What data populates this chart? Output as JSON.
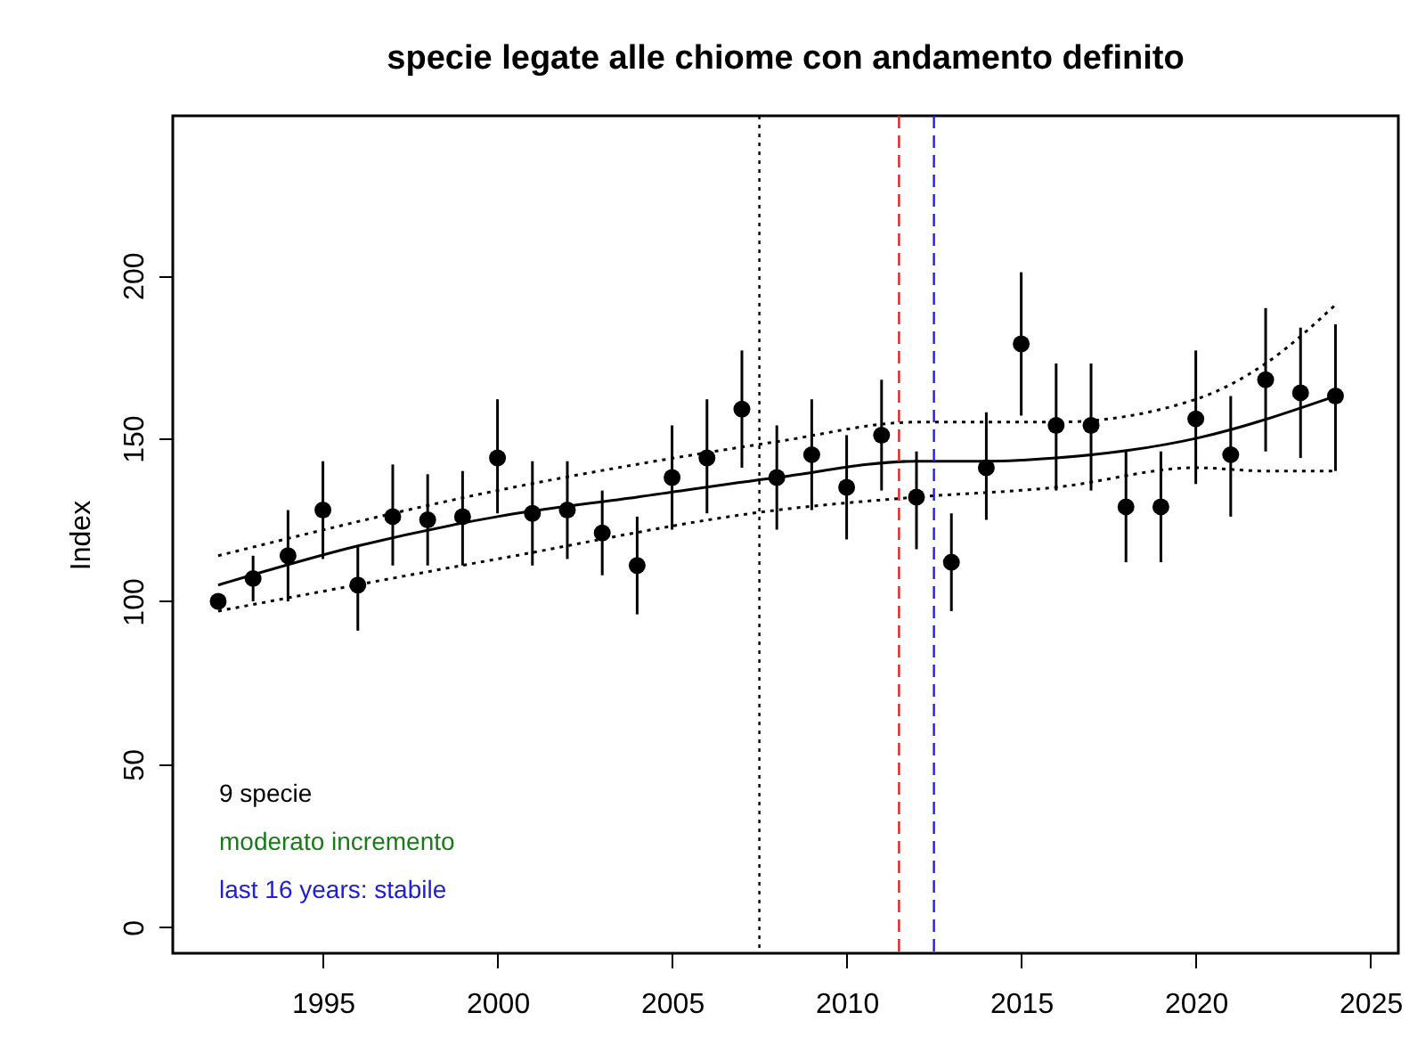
{
  "chart_data": {
    "type": "line",
    "title": "specie legate alle chiome con andamento definito",
    "ylabel": "Index",
    "xlim": [
      1990.7,
      2025.8
    ],
    "xticks": [
      1995,
      2000,
      2005,
      2010,
      2015,
      2020,
      2025
    ],
    "ylim": [
      -8,
      249
    ],
    "yticks": [
      0,
      50,
      100,
      150,
      200
    ],
    "grid": false,
    "series": [
      {
        "type": "scatter",
        "marker": "circle",
        "color": "#000000",
        "x": [
          1992,
          1993,
          1994,
          1995,
          1996,
          1997,
          1998,
          1999,
          2000,
          2001,
          2002,
          2003,
          2004,
          2005,
          2006,
          2007,
          2008,
          2009,
          2010,
          2011,
          2012,
          2013,
          2014,
          2015,
          2016,
          2017,
          2018,
          2019,
          2020,
          2021,
          2022,
          2023,
          2024
        ],
        "values": [
          100,
          107,
          114,
          128,
          105,
          126,
          125,
          126,
          144,
          127,
          128,
          121,
          111,
          138,
          144,
          159,
          138,
          145,
          135,
          151,
          132,
          112,
          141,
          179,
          154,
          154,
          129,
          129,
          156,
          145,
          168,
          164,
          163
        ],
        "errors": [
          null,
          [
            100,
            114
          ],
          [
            100,
            128
          ],
          [
            113,
            143
          ],
          [
            91,
            117
          ],
          [
            111,
            142
          ],
          [
            111,
            139
          ],
          [
            111,
            140
          ],
          [
            127,
            162
          ],
          [
            111,
            143
          ],
          [
            113,
            143
          ],
          [
            108,
            134
          ],
          [
            96,
            126
          ],
          [
            122,
            154
          ],
          [
            127,
            162
          ],
          [
            141,
            177
          ],
          [
            122,
            154
          ],
          [
            128,
            162
          ],
          [
            119,
            151
          ],
          [
            134,
            168
          ],
          [
            116,
            146
          ],
          [
            97,
            127
          ],
          [
            125,
            158
          ],
          [
            157,
            201
          ],
          [
            134,
            173
          ],
          [
            134,
            173
          ],
          [
            112,
            146
          ],
          [
            112,
            146
          ],
          [
            136,
            177
          ],
          [
            126,
            163
          ],
          [
            146,
            190
          ],
          [
            144,
            184
          ],
          [
            140,
            185
          ]
        ]
      },
      {
        "marker": "none",
        "color": "#000000",
        "line_style": "solid",
        "x": [
          1992,
          1996,
          2000,
          2004,
          2008,
          2012,
          2014,
          2016,
          2020,
          2024
        ],
        "values": [
          105,
          117,
          126,
          132,
          138,
          143,
          143,
          144,
          150,
          163
        ]
      },
      {
        "marker": "none",
        "color": "#000000",
        "line_style": "dotted",
        "x": [
          1992,
          2000,
          2008,
          2012,
          2016,
          2020,
          2022,
          2024
        ],
        "values": [
          114,
          134,
          149,
          155,
          155,
          162,
          173,
          191
        ]
      },
      {
        "marker": "none",
        "color": "#000000",
        "line_style": "dotted",
        "x": [
          1992,
          2000,
          2008,
          2012,
          2016,
          2020,
          2022,
          2024
        ],
        "values": [
          97,
          113,
          128,
          132,
          135,
          141,
          140,
          140
        ]
      }
    ],
    "ref_lines": [
      {
        "axis": "x",
        "value": 2007.5,
        "color": "#000000",
        "line_style": "dotted"
      },
      {
        "axis": "x",
        "value": 2011.5,
        "color": "#dd2222",
        "line_style": "dashed"
      },
      {
        "axis": "x",
        "value": 2012.5,
        "color": "#2222dd",
        "line_style": "dashed"
      }
    ],
    "annotations": [
      "9 specie",
      "moderato incremento",
      "last 16 years: stabile"
    ]
  }
}
